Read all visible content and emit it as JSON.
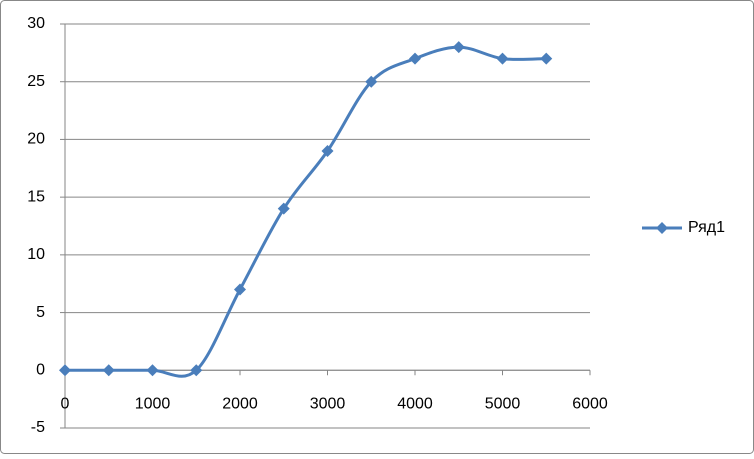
{
  "chart_data": {
    "type": "scatter-smooth",
    "x": [
      0,
      500,
      1000,
      1500,
      2000,
      2500,
      3000,
      3500,
      4000,
      4500,
      5000,
      5500
    ],
    "series": [
      {
        "name": "Ряд1",
        "color": "#4a7ebb",
        "values": [
          0,
          0,
          0,
          0,
          7,
          14,
          19,
          25,
          27,
          28,
          27,
          27
        ]
      }
    ],
    "xlim": [
      0,
      6000
    ],
    "xticks": [
      0,
      1000,
      2000,
      3000,
      4000,
      5000,
      6000
    ],
    "ylim": [
      -5,
      30
    ],
    "yticks": [
      -5,
      0,
      5,
      10,
      15,
      20,
      25,
      30
    ],
    "grid": true,
    "legend": "right"
  }
}
